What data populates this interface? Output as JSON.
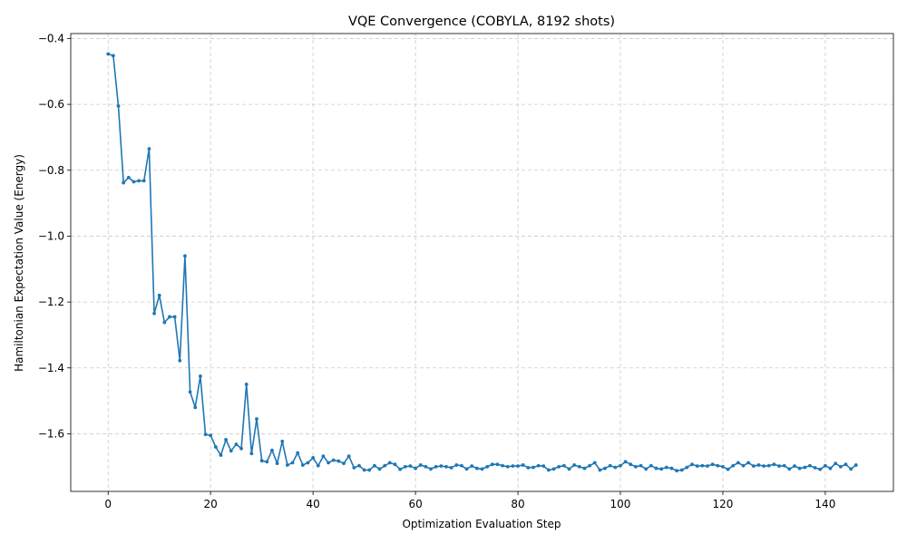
{
  "chart_data": {
    "type": "line",
    "title": "VQE Convergence (COBYLA, 8192 shots)",
    "xlabel": "Optimization Evaluation Step",
    "ylabel": "Hamiltonian Expectation Value (Energy)",
    "xlim": [
      -7.3,
      153.3
    ],
    "ylim": [
      -1.775,
      -0.385
    ],
    "xticks": [
      0,
      20,
      40,
      60,
      80,
      100,
      120,
      140
    ],
    "yticks": [
      -1.6,
      -1.4,
      -1.2,
      -1.0,
      -0.8,
      -0.6,
      -0.4
    ],
    "xtick_labels": [
      "0",
      "20",
      "40",
      "60",
      "80",
      "100",
      "120",
      "140"
    ],
    "ytick_labels": [
      "−1.6",
      "−1.4",
      "−1.2",
      "−1.0",
      "−0.8",
      "−0.6",
      "−0.4"
    ],
    "grid": true,
    "line_color": "#1f77b4",
    "marker": "circle",
    "series": [
      {
        "values": [
          -0.447,
          -0.452,
          -0.605,
          -0.838,
          -0.822,
          -0.835,
          -0.832,
          -0.832,
          -0.735,
          -1.235,
          -1.18,
          -1.262,
          -1.245,
          -1.245,
          -1.378,
          -1.06,
          -1.473,
          -1.52,
          -1.425,
          -1.602,
          -1.605,
          -1.64,
          -1.665,
          -1.618,
          -1.652,
          -1.632,
          -1.645,
          -1.45,
          -1.66,
          -1.555,
          -1.682,
          -1.685,
          -1.65,
          -1.69,
          -1.623,
          -1.695,
          -1.688,
          -1.658,
          -1.695,
          -1.688,
          -1.673,
          -1.697,
          -1.668,
          -1.688,
          -1.68,
          -1.683,
          -1.69,
          -1.668,
          -1.703,
          -1.697,
          -1.71,
          -1.71,
          -1.697,
          -1.707,
          -1.697,
          -1.688,
          -1.693,
          -1.708,
          -1.7,
          -1.698,
          -1.705,
          -1.695,
          -1.7,
          -1.707,
          -1.7,
          -1.698,
          -1.7,
          -1.703,
          -1.695,
          -1.697,
          -1.707,
          -1.698,
          -1.705,
          -1.707,
          -1.7,
          -1.693,
          -1.693,
          -1.697,
          -1.7,
          -1.698,
          -1.698,
          -1.695,
          -1.703,
          -1.702,
          -1.697,
          -1.698,
          -1.71,
          -1.707,
          -1.7,
          -1.697,
          -1.707,
          -1.695,
          -1.7,
          -1.705,
          -1.697,
          -1.688,
          -1.71,
          -1.705,
          -1.697,
          -1.702,
          -1.697,
          -1.685,
          -1.693,
          -1.7,
          -1.697,
          -1.707,
          -1.697,
          -1.705,
          -1.707,
          -1.702,
          -1.705,
          -1.712,
          -1.71,
          -1.702,
          -1.693,
          -1.698,
          -1.697,
          -1.698,
          -1.693,
          -1.697,
          -1.7,
          -1.708,
          -1.697,
          -1.688,
          -1.697,
          -1.688,
          -1.698,
          -1.695,
          -1.698,
          -1.697,
          -1.693,
          -1.698,
          -1.697,
          -1.707,
          -1.698,
          -1.705,
          -1.702,
          -1.697,
          -1.703,
          -1.708,
          -1.697,
          -1.705,
          -1.69,
          -1.7,
          -1.693,
          -1.707,
          -1.695
        ]
      }
    ]
  }
}
